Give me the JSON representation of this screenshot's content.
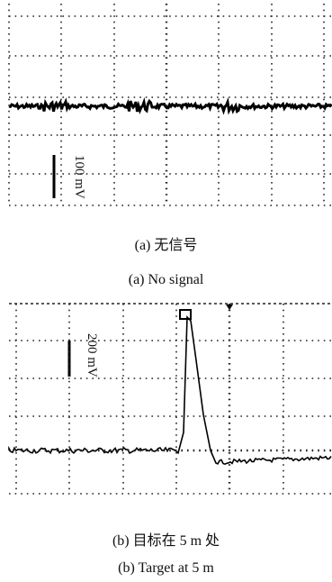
{
  "panels": [
    {
      "scale_label": "100 mV",
      "caption_cn": "(a) 无信号",
      "caption_en": "(a) No signal"
    },
    {
      "scale_label": "200 mV",
      "caption_cn": "(b) 目标在 5 m 处",
      "caption_en": "(b) Target at 5 m"
    }
  ]
}
